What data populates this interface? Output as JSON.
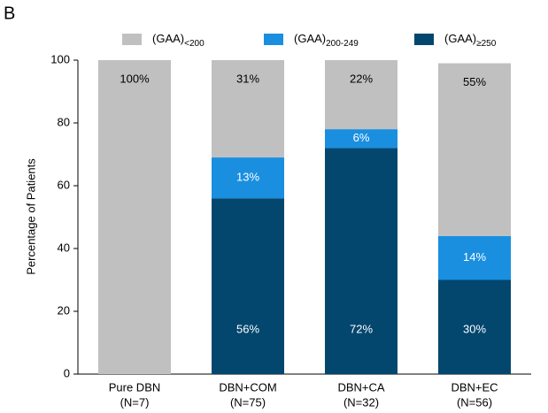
{
  "chart_data": {
    "type": "stacked_bar",
    "panel_label": "B",
    "y_label": "Percentage of Patients",
    "categories": [
      "Pure DBN",
      "DBN+COM",
      "DBN+CA",
      "DBN+EC"
    ],
    "category_n": [
      "(N=7)",
      "(N=75)",
      "(N=32)",
      "(N=56)"
    ],
    "series": [
      {
        "name": "(GAA)",
        "subscript": "≥250",
        "color": "#03466e",
        "values": [
          0,
          56,
          72,
          30
        ],
        "value_labels": [
          null,
          "56%",
          "72%",
          "30%"
        ]
      },
      {
        "name": "(GAA)",
        "subscript": "200-249",
        "color": "#1a8fe0",
        "values": [
          0,
          13,
          6,
          14
        ],
        "value_labels": [
          null,
          "13%",
          "6%",
          "14%"
        ]
      },
      {
        "name": "(GAA)",
        "subscript": "<200",
        "color": "#c0c0c0",
        "values": [
          100,
          31,
          22,
          55
        ],
        "value_labels": [
          "100%",
          "31%",
          "22%",
          "55%"
        ]
      }
    ],
    "legend_order": [
      2,
      1,
      0
    ],
    "ylim": [
      0,
      100
    ],
    "yticks": [
      0,
      20,
      40,
      60,
      80,
      100
    ]
  }
}
